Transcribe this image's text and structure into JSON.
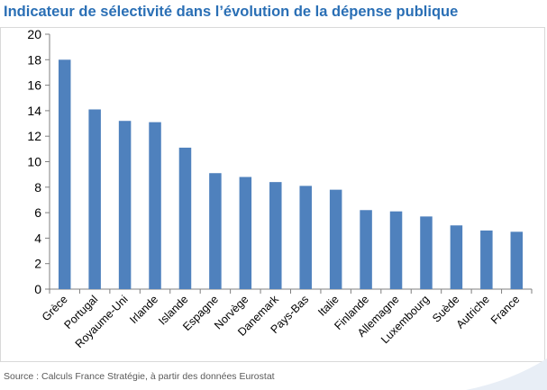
{
  "chart_data": {
    "type": "bar",
    "title": "Indicateur de sélectivité dans l’évolution de la dépense publique",
    "categories": [
      "Grèce",
      "Portugal",
      "Royaume-Uni",
      "Irlande",
      "Islande",
      "Espagne",
      "Norvège",
      "Danemark",
      "Pays-Bas",
      "Italie",
      "Finlande",
      "Allemagne",
      "Luxembourg",
      "Suède",
      "Autriche",
      "France"
    ],
    "values": [
      18.0,
      14.1,
      13.2,
      13.1,
      11.1,
      9.1,
      8.8,
      8.4,
      8.1,
      7.8,
      6.2,
      6.1,
      5.7,
      5.0,
      4.6,
      4.5
    ],
    "ylim": [
      0,
      20
    ],
    "yticks": [
      0,
      2,
      4,
      6,
      8,
      10,
      12,
      14,
      16,
      18,
      20
    ],
    "ytick_labels": [
      "0",
      "2",
      "4",
      "6",
      "8",
      "10",
      "12",
      "14",
      "16",
      "18",
      "20"
    ],
    "xlabel": "",
    "ylabel": "",
    "grid": false,
    "bar_color": "#4f81bd"
  },
  "source": "Source : Calculs France Stratégie, à partir des données Eurostat"
}
